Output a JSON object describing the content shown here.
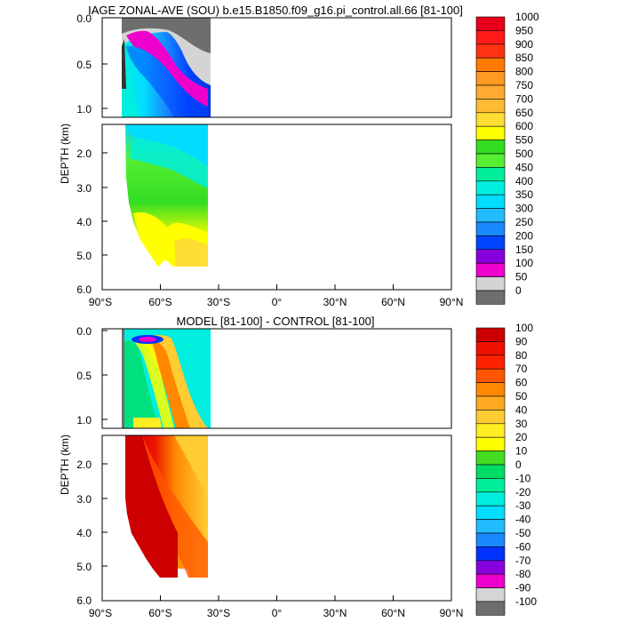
{
  "chart_data": [
    {
      "type": "heatmap",
      "title": "IAGE ZONAL-AVE (SOU) b.e15.B1850.f09_g16.pi_control.all.66 [81-100]",
      "ylabel": "DEPTH (km)",
      "xlabel": "",
      "x_ticks": [
        "90°S",
        "60°S",
        "30°S",
        "0°",
        "30°N",
        "60°N",
        "90°N"
      ],
      "upper_y_ticks": [
        "0.0",
        "0.5",
        "1.0"
      ],
      "lower_y_ticks": [
        "2.0",
        "3.0",
        "4.0",
        "5.0",
        "6.0"
      ],
      "xlim": [
        -90,
        90
      ],
      "ylim_upper_km": [
        0.0,
        1.15
      ],
      "ylim_lower_km": [
        1.15,
        6.0
      ],
      "data_lat_range": [
        -79,
        -34
      ],
      "colorbar": {
        "labels": [
          "1000",
          "950",
          "900",
          "850",
          "800",
          "750",
          "700",
          "650",
          "600",
          "550",
          "500",
          "450",
          "400",
          "350",
          "300",
          "250",
          "200",
          "150",
          "100",
          "50",
          "0"
        ],
        "colors": [
          "#e8001a",
          "#ff1a1a",
          "#ff3311",
          "#ff7a00",
          "#ff9922",
          "#ffaa33",
          "#ffbb33",
          "#ffdd33",
          "#ffff00",
          "#33dd22",
          "#55ee33",
          "#00ee99",
          "#00eedd",
          "#00ddff",
          "#22bbff",
          "#1a88ff",
          "#0044ff",
          "#8800dd",
          "#ee00cc",
          "#d4d4d4",
          "#6e6e6e"
        ]
      }
    },
    {
      "type": "heatmap",
      "title": "MODEL [81-100] - CONTROL [81-100]",
      "ylabel": "DEPTH (km)",
      "xlabel": "",
      "x_ticks": [
        "90°S",
        "60°S",
        "30°S",
        "0°",
        "30°N",
        "60°N",
        "90°N"
      ],
      "upper_y_ticks": [
        "0.0",
        "0.5",
        "1.0"
      ],
      "lower_y_ticks": [
        "2.0",
        "3.0",
        "4.0",
        "5.0",
        "6.0"
      ],
      "xlim": [
        -90,
        90
      ],
      "ylim_upper_km": [
        0.0,
        1.15
      ],
      "ylim_lower_km": [
        1.15,
        6.0
      ],
      "data_lat_range": [
        -79,
        -34
      ],
      "colorbar": {
        "labels": [
          "100",
          "90",
          "80",
          "70",
          "60",
          "50",
          "40",
          "30",
          "20",
          "10",
          "0",
          "-10",
          "-20",
          "-30",
          "-40",
          "-50",
          "-60",
          "-70",
          "-80",
          "-90",
          "-100"
        ],
        "colors": [
          "#cc0000",
          "#ee1100",
          "#ff2200",
          "#ff5500",
          "#ff8800",
          "#ffaa22",
          "#ffcc33",
          "#ffee22",
          "#ffff00",
          "#44dd22",
          "#00dd66",
          "#00ee99",
          "#00eedd",
          "#00ddff",
          "#22bbff",
          "#1a88ff",
          "#0033ff",
          "#8800dd",
          "#ee00cc",
          "#d4d4d4",
          "#6e6e6e"
        ]
      }
    }
  ]
}
